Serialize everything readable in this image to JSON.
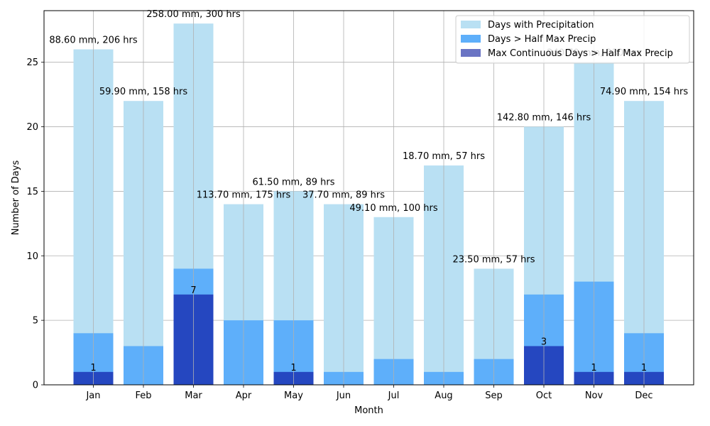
{
  "chart_data": {
    "type": "bar",
    "xlabel": "Month",
    "ylabel": "Number of Days",
    "ylim": [
      0,
      29
    ],
    "yticks": [
      0,
      5,
      10,
      15,
      20,
      25
    ],
    "grid": true,
    "legend_position": "top-right",
    "categories": [
      "Jan",
      "Feb",
      "Mar",
      "Apr",
      "May",
      "Jun",
      "Jul",
      "Aug",
      "Sep",
      "Oct",
      "Nov",
      "Dec"
    ],
    "series": [
      {
        "name": "Days with Precipitation",
        "color": "#b9e0f3",
        "values": [
          26,
          22,
          28,
          14,
          15,
          14,
          13,
          17,
          9,
          20,
          25,
          22
        ]
      },
      {
        "name": "Days > Half Max Precip",
        "color": "#5eaffa",
        "values": [
          4,
          3,
          9,
          5,
          5,
          1,
          2,
          1,
          2,
          7,
          8,
          4
        ]
      },
      {
        "name": "Max Continuous Days > Half Max Precip",
        "color": "#2547c0",
        "values": [
          1,
          0,
          7,
          0,
          1,
          0,
          0,
          0,
          0,
          3,
          1,
          1
        ]
      }
    ],
    "annotations": [
      "88.60 mm, 206 hrs",
      "59.90 mm, 158 hrs",
      "258.00 mm, 300 hrs",
      "113.70 mm, 175 hrs",
      "61.50 mm, 89 hrs",
      "37.70 mm, 89 hrs",
      "49.10 mm, 100 hrs",
      "18.70 mm, 57 hrs",
      "23.50 mm, 57 hrs",
      "142.80 mm, 146 hrs",
      "240.70 mm, 230 hrs",
      "74.90 mm, 154 hrs"
    ],
    "max_continuous_labels": [
      "1",
      "",
      "7",
      "",
      "1",
      "",
      "",
      "",
      "",
      "3",
      "1",
      "1"
    ]
  }
}
